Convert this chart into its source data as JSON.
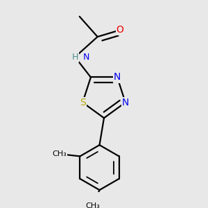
{
  "background_color": "#e8e8e8",
  "atom_colors": {
    "C": "#000000",
    "N": "#0000ee",
    "O": "#ee0000",
    "S": "#bbaa00",
    "H": "#4a9090"
  },
  "bond_color": "#000000",
  "bond_width": 1.6,
  "fig_width": 3.0,
  "fig_height": 3.0,
  "dpi": 100
}
